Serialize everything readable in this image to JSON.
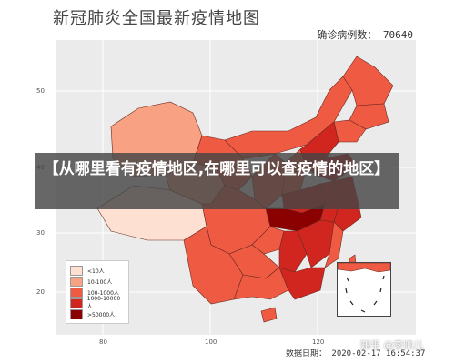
{
  "title": "新冠肺炎全国最新疫情地图",
  "total_cases": "确诊病例数： 70640",
  "data_date": "数据日期： 2020-02-17 16:54:37",
  "overlay_banner": "【从哪里看有疫情地区,在哪里可以查疫情的地区】",
  "watermark": "知乎 @李帅儿",
  "axes": {
    "y_ticks": [
      "50",
      "40",
      "30",
      "20"
    ],
    "x_ticks": [
      "80",
      "100",
      "120"
    ]
  },
  "legend": [
    {
      "label": "<10人",
      "color": "#fde0d2"
    },
    {
      "label": "10-100人",
      "color": "#f8a283"
    },
    {
      "label": "100-1000人",
      "color": "#ef5a43"
    },
    {
      "label": "1000-10000人",
      "color": "#d1261f"
    },
    {
      "label": ">50000人",
      "color": "#8b0000"
    }
  ],
  "colors": {
    "plot_background": "#ebebeb",
    "province_border": "#6b2a20"
  }
}
